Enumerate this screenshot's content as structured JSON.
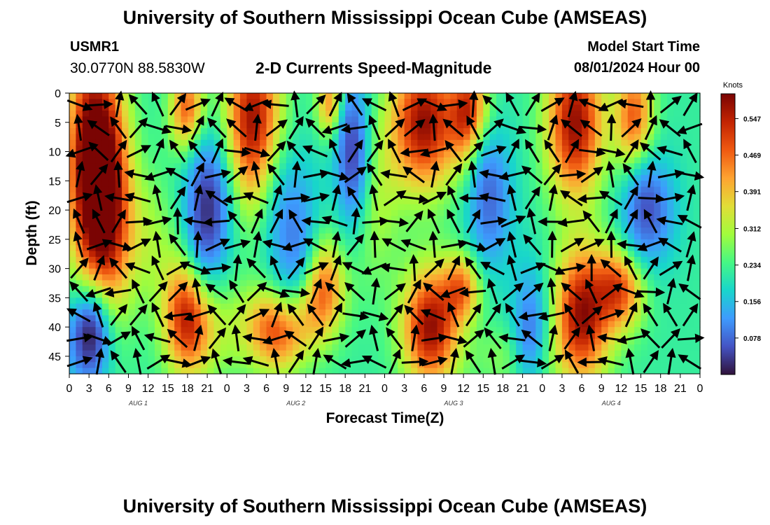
{
  "header": {
    "title": "University of Southern Mississippi Ocean Cube (AMSEAS)",
    "station_id": "USMR1",
    "station_coords": "30.0770N  88.5830W",
    "plot_title": "2-D Currents Speed-Magnitude",
    "model_start_label": "Model Start Time",
    "model_start_value": "08/01/2024 Hour 00"
  },
  "footer": {
    "title": "University of Southern Mississippi Ocean Cube (AMSEAS)"
  },
  "chart_data": {
    "type": "heatmap",
    "title": "2-D Currents Speed-Magnitude",
    "xlabel": "Forecast Time(Z)",
    "ylabel": "Depth (ft)",
    "x_range_hours": [
      0,
      96
    ],
    "x_tick_labels": [
      "0",
      "3",
      "6",
      "9",
      "12",
      "15",
      "18",
      "21",
      "0",
      "3",
      "6",
      "9",
      "12",
      "15",
      "18",
      "21",
      "0",
      "3",
      "6",
      "9",
      "12",
      "15",
      "18",
      "21",
      "0",
      "3",
      "6",
      "9",
      "12",
      "15",
      "18",
      "21",
      "0"
    ],
    "day_labels": [
      "AUG 1",
      "AUG 2",
      "AUG 3",
      "AUG 4"
    ],
    "y_range_ft": [
      0,
      48
    ],
    "y_ticks": [
      0,
      5,
      10,
      15,
      20,
      25,
      30,
      35,
      40,
      45
    ],
    "colorbar": {
      "title": "Knots",
      "min": 0,
      "max": 0.6,
      "tick_values": [
        0.547,
        0.469,
        0.391,
        0.312,
        0.234,
        0.156,
        0.078
      ],
      "tick_labels": [
        "0.547",
        "0.469",
        "0.391",
        "0.312",
        "0.234",
        "0.156",
        "0.078"
      ],
      "colors": [
        "#30123b",
        "#4454c4",
        "#3e9bfe",
        "#18d6cb",
        "#46f884",
        "#a2fc3c",
        "#e1dd37",
        "#fea331",
        "#ef5911",
        "#c22402",
        "#7a0403"
      ]
    },
    "speed_centers_knots": [
      {
        "hour": 3,
        "depth": 12,
        "speed": 0.58,
        "sh": 2.5,
        "sd": 14
      },
      {
        "hour": 6,
        "depth": 18,
        "speed": 0.55,
        "sh": 2.5,
        "sd": 14
      },
      {
        "hour": 18,
        "depth": 3,
        "speed": 0.5,
        "sh": 1.8,
        "sd": 5
      },
      {
        "hour": 18,
        "depth": 38,
        "speed": 0.55,
        "sh": 2.5,
        "sd": 7
      },
      {
        "hour": 28,
        "depth": 5,
        "speed": 0.58,
        "sh": 3,
        "sd": 10
      },
      {
        "hour": 32,
        "depth": 40,
        "speed": 0.55,
        "sh": 3,
        "sd": 5
      },
      {
        "hour": 38,
        "depth": 33,
        "speed": 0.55,
        "sh": 2.5,
        "sd": 6
      },
      {
        "hour": 40,
        "depth": 2,
        "speed": 0.5,
        "sh": 1.5,
        "sd": 4
      },
      {
        "hour": 54,
        "depth": 5,
        "speed": 0.58,
        "sh": 3.5,
        "sd": 8
      },
      {
        "hour": 61,
        "depth": 4,
        "speed": 0.55,
        "sh": 2,
        "sd": 6
      },
      {
        "hour": 55,
        "depth": 40,
        "speed": 0.58,
        "sh": 3,
        "sd": 7
      },
      {
        "hour": 60,
        "depth": 33,
        "speed": 0.45,
        "sh": 2,
        "sd": 4
      },
      {
        "hour": 77,
        "depth": 5,
        "speed": 0.58,
        "sh": 3,
        "sd": 9
      },
      {
        "hour": 78,
        "depth": 38,
        "speed": 0.58,
        "sh": 3,
        "sd": 8
      },
      {
        "hour": 84,
        "depth": 33,
        "speed": 0.5,
        "sh": 2.5,
        "sd": 5
      },
      {
        "hour": 86,
        "depth": 5,
        "speed": 0.5,
        "sh": 2,
        "sd": 7
      },
      {
        "hour": 24,
        "depth": 40,
        "speed": 0.3,
        "sh": 4,
        "sd": 6
      },
      {
        "hour": 46,
        "depth": 18,
        "speed": 0.32,
        "sh": 3,
        "sd": 10
      },
      {
        "hour": 12,
        "depth": 25,
        "speed": 0.3,
        "sh": 3,
        "sd": 8
      },
      {
        "hour": 68,
        "depth": 45,
        "speed": 0.3,
        "sh": 4,
        "sd": 4
      }
    ],
    "low_speed_regions_knots": [
      {
        "hour": 3,
        "depth": 42,
        "speed": 0.02,
        "sh": 2.5,
        "sd": 6
      },
      {
        "hour": 21,
        "depth": 20,
        "speed": 0.03,
        "sh": 2.5,
        "sd": 9
      },
      {
        "hour": 43,
        "depth": 10,
        "speed": 0.05,
        "sh": 2,
        "sd": 10
      },
      {
        "hour": 34,
        "depth": 24,
        "speed": 0.1,
        "sh": 3,
        "sd": 10
      },
      {
        "hour": 64,
        "depth": 18,
        "speed": 0.08,
        "sh": 2.5,
        "sd": 9
      },
      {
        "hour": 70,
        "depth": 40,
        "speed": 0.1,
        "sh": 2,
        "sd": 8
      },
      {
        "hour": 88,
        "depth": 20,
        "speed": 0.06,
        "sh": 3,
        "sd": 7
      }
    ],
    "vector_grid": {
      "hour_step": 3,
      "depth_start_ft": 2,
      "depth_step_ft": 4
    }
  }
}
